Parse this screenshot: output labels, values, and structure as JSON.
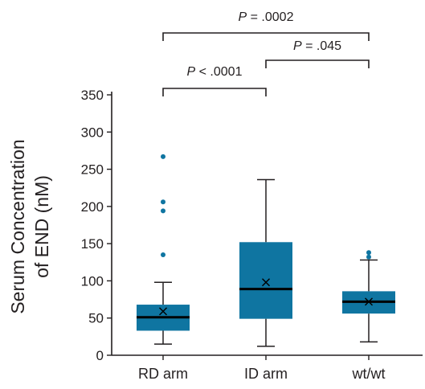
{
  "chart_data": {
    "type": "box",
    "title": "",
    "xlabel": "",
    "ylabel_lines": [
      "Serum Concentration",
      "of END (nM)"
    ],
    "ylim": [
      0,
      350
    ],
    "yticks": [
      0,
      50,
      100,
      150,
      200,
      250,
      300,
      350
    ],
    "categories": [
      "RD arm",
      "ID arm",
      "wt/wt"
    ],
    "boxes": [
      {
        "category": "RD arm",
        "whisker_low": 15,
        "q1": 33,
        "median": 51,
        "q3": 68,
        "whisker_high": 98,
        "mean": 59,
        "outliers": [
          135,
          194,
          206,
          267
        ]
      },
      {
        "category": "ID arm",
        "whisker_low": 12,
        "q1": 49,
        "median": 89,
        "q3": 152,
        "whisker_high": 236,
        "mean": 98,
        "outliers": []
      },
      {
        "category": "wt/wt",
        "whisker_low": 18,
        "q1": 56,
        "median": 72,
        "q3": 86,
        "whisker_high": 128,
        "mean": 72,
        "outliers": [
          132,
          138
        ]
      }
    ],
    "comparisons": [
      {
        "from": "RD arm",
        "to": "ID arm",
        "p_symbol": "P",
        "p_text": " < .0001"
      },
      {
        "from": "ID arm",
        "to": "wt/wt",
        "p_symbol": "P",
        "p_text": " = .045"
      },
      {
        "from": "RD arm",
        "to": "wt/wt",
        "p_symbol": "P",
        "p_text": " = .0002"
      }
    ],
    "colors": {
      "box": "#0f75a1",
      "line": "#231f20",
      "outlier": "#0f75a1"
    },
    "grid": false,
    "legend": "none"
  }
}
